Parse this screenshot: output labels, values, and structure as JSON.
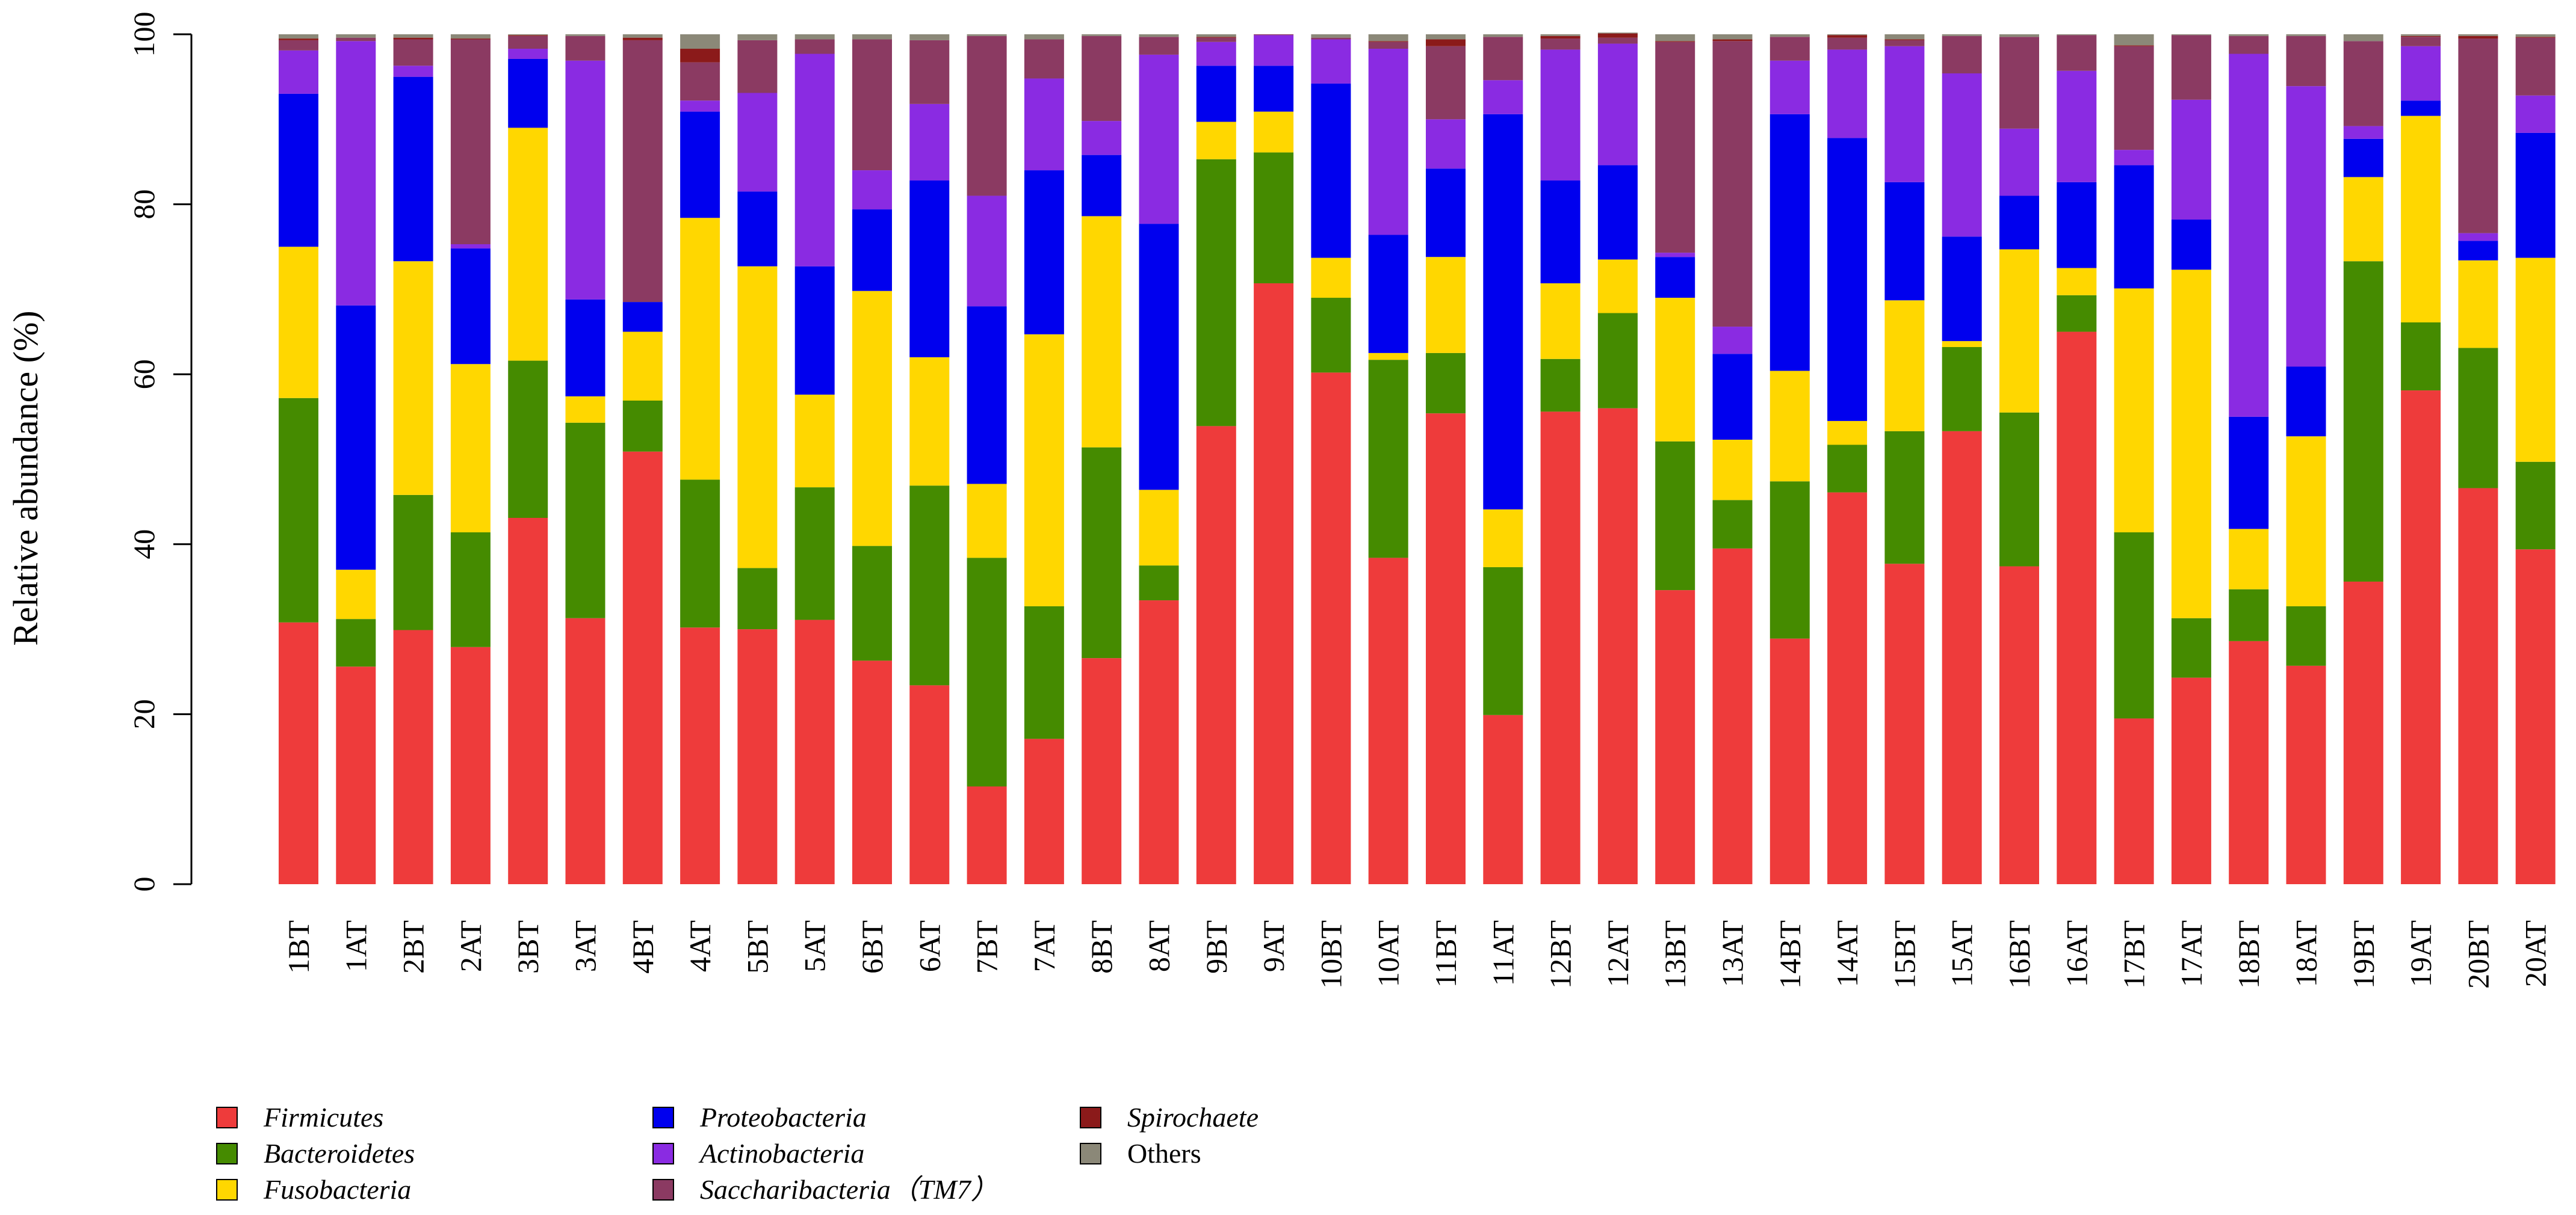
{
  "chart_data": {
    "type": "bar",
    "stacked": true,
    "ylabel": "Relative abundance (%)",
    "xlabel": "",
    "ylim": [
      0,
      100
    ],
    "yticks": [
      0,
      20,
      40,
      60,
      80,
      100
    ],
    "grid": false,
    "legend_position": "bottom-left",
    "categories": [
      "1BT",
      "1AT",
      "2BT",
      "2AT",
      "3BT",
      "3AT",
      "4BT",
      "4AT",
      "5BT",
      "5AT",
      "6BT",
      "6AT",
      "7BT",
      "7AT",
      "8BT",
      "8AT",
      "9BT",
      "9AT",
      "10BT",
      "10AT",
      "11BT",
      "11AT",
      "12BT",
      "12AT",
      "13BT",
      "13AT",
      "14BT",
      "14AT",
      "15BT",
      "15AT",
      "16BT",
      "16AT",
      "17BT",
      "17AT",
      "18BT",
      "18AT",
      "19BT",
      "19AT",
      "20BT",
      "20AT"
    ],
    "series": [
      {
        "name": "Firmicutes",
        "italic": true,
        "color": "#ee3b3b",
        "values": [
          30.8,
          25.6,
          29.9,
          27.9,
          43.1,
          31.3,
          50.9,
          30.2,
          30.0,
          31.1,
          26.3,
          23.4,
          11.5,
          17.1,
          26.6,
          33.4,
          53.9,
          70.7,
          60.2,
          38.4,
          55.4,
          19.9,
          55.6,
          56.0,
          34.6,
          39.5,
          28.9,
          46.1,
          37.7,
          53.3,
          37.4,
          65.0,
          19.5,
          24.3,
          28.6,
          25.7,
          35.6,
          58.1,
          46.6,
          39.4
        ]
      },
      {
        "name": "Bacteroidetes",
        "italic": true,
        "color": "#458b00",
        "values": [
          26.4,
          5.6,
          15.9,
          13.5,
          18.5,
          23.0,
          6.0,
          17.4,
          7.2,
          15.6,
          13.5,
          23.5,
          26.9,
          15.6,
          24.8,
          4.1,
          31.4,
          15.4,
          8.8,
          23.3,
          7.1,
          17.4,
          6.2,
          11.2,
          17.5,
          5.7,
          18.5,
          5.6,
          15.6,
          9.9,
          18.1,
          4.3,
          21.9,
          7.0,
          6.1,
          7.0,
          37.7,
          8.0,
          16.5,
          10.3
        ]
      },
      {
        "name": "Fusobacteria",
        "italic": true,
        "color": "#ffd700",
        "values": [
          17.8,
          5.8,
          27.5,
          19.8,
          27.4,
          3.1,
          8.1,
          30.8,
          35.5,
          10.9,
          30.0,
          15.1,
          8.7,
          32.0,
          27.2,
          8.9,
          4.4,
          4.8,
          4.7,
          0.8,
          11.3,
          6.8,
          8.9,
          6.3,
          16.9,
          7.1,
          13.0,
          2.8,
          15.4,
          0.7,
          19.2,
          3.2,
          28.7,
          41.0,
          7.1,
          20.0,
          9.9,
          24.3,
          10.3,
          24.0
        ]
      },
      {
        "name": "Proteobacteria",
        "italic": true,
        "color": "#0000ee",
        "values": [
          18.0,
          31.1,
          21.7,
          13.6,
          8.1,
          11.4,
          3.5,
          12.5,
          8.8,
          15.1,
          9.6,
          20.8,
          20.9,
          19.3,
          7.2,
          31.3,
          6.6,
          5.4,
          20.5,
          13.9,
          10.4,
          46.5,
          12.1,
          11.1,
          4.8,
          10.1,
          30.2,
          33.3,
          13.9,
          12.3,
          6.3,
          10.1,
          14.5,
          5.9,
          13.2,
          8.2,
          4.5,
          1.8,
          2.3,
          14.7
        ]
      },
      {
        "name": "Actinobacteria",
        "italic": true,
        "color": "#8a2be2",
        "values": [
          5.1,
          31.1,
          1.3,
          0.5,
          1.2,
          28.1,
          0,
          1.3,
          11.6,
          25.0,
          4.6,
          9.0,
          13.0,
          10.8,
          4.0,
          19.9,
          2.8,
          3.6,
          5.2,
          21.9,
          5.8,
          4.0,
          15.4,
          14.3,
          0.5,
          3.2,
          6.3,
          10.4,
          16.0,
          19.2,
          7.9,
          13.1,
          1.8,
          14.1,
          42.7,
          33.0,
          1.5,
          6.4,
          0.9,
          4.4
        ]
      },
      {
        "name": "Saccharibacteria（TM7）",
        "italic": true,
        "color": "#8b3a62",
        "values": [
          1.2,
          0.4,
          3.1,
          24.1,
          1.5,
          2.9,
          30.8,
          4.5,
          6.2,
          1.7,
          15.4,
          7.5,
          18.8,
          4.6,
          10.0,
          2.1,
          0.5,
          0.1,
          0.2,
          0.8,
          8.6,
          5.1,
          1.3,
          0.7,
          24.8,
          33.6,
          2.8,
          1.4,
          0.7,
          4.4,
          10.8,
          4.2,
          12.2,
          7.6,
          2.1,
          5.9,
          10.0,
          1.1,
          22.9,
          6.8
        ]
      },
      {
        "name": "Spirochaete",
        "italic": true,
        "color": "#8b1a1a",
        "values": [
          0.2,
          0,
          0.2,
          0.1,
          0.1,
          0,
          0.3,
          1.6,
          0,
          0,
          0,
          0,
          0,
          0,
          0,
          0,
          0.1,
          0,
          0,
          0.1,
          0.8,
          0,
          0.3,
          0.5,
          0.1,
          0.2,
          0,
          0.3,
          0.1,
          0,
          0,
          0,
          0.1,
          0,
          0,
          0,
          0,
          0.1,
          0.3,
          0.1
        ]
      },
      {
        "name": "Others",
        "italic": false,
        "color": "#8b8878",
        "values": [
          0.5,
          0.4,
          0.4,
          0.5,
          0.1,
          0.2,
          0.4,
          1.7,
          0.7,
          0.6,
          0.6,
          0.7,
          0.2,
          0.6,
          0.2,
          0.3,
          0.3,
          0.0,
          0.4,
          0.8,
          0.6,
          0.3,
          0.2,
          0.1,
          0.8,
          0.6,
          0.3,
          0.1,
          0.6,
          0.2,
          0.3,
          0.1,
          1.3,
          0.1,
          0.2,
          0.2,
          0.8,
          0.2,
          0.2,
          0.3
        ]
      }
    ]
  }
}
